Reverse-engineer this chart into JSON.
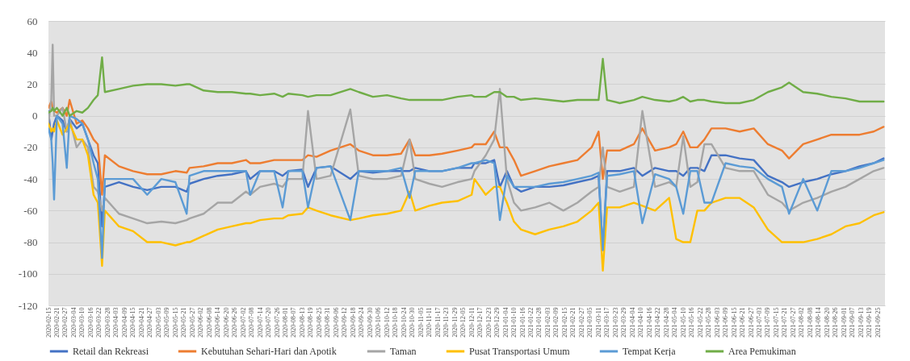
{
  "chart_data": {
    "type": "line",
    "x": [
      "2020-02-15",
      "2020-02-17",
      "2020-02-18",
      "2020-02-19",
      "2020-02-21",
      "2020-02-25",
      "2020-02-28",
      "2020-03-01",
      "2020-03-06",
      "2020-03-10",
      "2020-03-14",
      "2020-03-18",
      "2020-03-21",
      "2020-03-24",
      "2020-03-26",
      "2020-04-05",
      "2020-04-15",
      "2020-04-25",
      "2020-05-05",
      "2020-05-15",
      "2020-05-23",
      "2020-05-25",
      "2020-06-04",
      "2020-06-14",
      "2020-06-24",
      "2020-07-04",
      "2020-07-07",
      "2020-07-14",
      "2020-07-24",
      "2020-07-30",
      "2020-08-03",
      "2020-08-13",
      "2020-08-17",
      "2020-08-23",
      "2020-09-02",
      "2020-09-16",
      "2020-09-22",
      "2020-10-02",
      "2020-10-12",
      "2020-10-22",
      "2020-10-28",
      "2020-11-01",
      "2020-11-11",
      "2020-11-20",
      "2020-12-01",
      "2020-12-11",
      "2020-12-13",
      "2020-12-21",
      "2020-12-27",
      "2020-12-31",
      "2021-01-05",
      "2021-01-10",
      "2021-01-15",
      "2021-01-25",
      "2021-02-04",
      "2021-02-14",
      "2021-02-24",
      "2021-03-06",
      "2021-03-11",
      "2021-03-14",
      "2021-03-17",
      "2021-03-26",
      "2021-04-05",
      "2021-04-11",
      "2021-04-20",
      "2021-04-30",
      "2021-05-05",
      "2021-05-10",
      "2021-05-15",
      "2021-05-20",
      "2021-05-25",
      "2021-05-30",
      "2021-06-09",
      "2021-06-19",
      "2021-06-29",
      "2021-07-09",
      "2021-07-19",
      "2021-07-24",
      "2021-08-03",
      "2021-08-13",
      "2021-08-23",
      "2021-09-02",
      "2021-09-12",
      "2021-09-22",
      "2021-09-29"
    ],
    "series": [
      {
        "name": "Retail dan Rekreasi",
        "color": "#4472c4",
        "values": [
          3,
          -15,
          -10,
          -5,
          0,
          -3,
          -10,
          -2,
          -8,
          -5,
          -15,
          -25,
          -30,
          -70,
          -45,
          -42,
          -45,
          -47,
          -45,
          -45,
          -48,
          -43,
          -40,
          -38,
          -37,
          -35,
          -40,
          -35,
          -35,
          -38,
          -35,
          -34,
          -45,
          -33,
          -32,
          -40,
          -35,
          -36,
          -35,
          -35,
          -35,
          -33,
          -35,
          -35,
          -33,
          -33,
          -30,
          -30,
          -28,
          -45,
          -35,
          -45,
          -48,
          -45,
          -45,
          -44,
          -42,
          -40,
          -38,
          -85,
          -35,
          -35,
          -33,
          -38,
          -33,
          -35,
          -35,
          -38,
          -33,
          -33,
          -35,
          -25,
          -25,
          -27,
          -28,
          -38,
          -42,
          -45,
          -42,
          -40,
          -37,
          -35,
          -32,
          -30,
          -27
        ]
      },
      {
        "name": "Kebutuhan Sehari-Hari dan Apotik",
        "color": "#ed7d31",
        "values": [
          5,
          9,
          5,
          3,
          2,
          5,
          0,
          10,
          -5,
          -3,
          -8,
          -15,
          -18,
          -50,
          -25,
          -32,
          -35,
          -37,
          -37,
          -35,
          -36,
          -33,
          -32,
          -30,
          -30,
          -28,
          -30,
          -30,
          -28,
          -28,
          -28,
          -28,
          -25,
          -26,
          -22,
          -18,
          -22,
          -25,
          -25,
          -24,
          -15,
          -25,
          -25,
          -24,
          -22,
          -20,
          -18,
          -18,
          -10,
          -20,
          -20,
          -28,
          -38,
          -35,
          -32,
          -30,
          -28,
          -20,
          -10,
          -40,
          -22,
          -22,
          -18,
          -8,
          -22,
          -20,
          -18,
          -10,
          -20,
          -20,
          -15,
          -8,
          -8,
          -10,
          -8,
          -18,
          -22,
          -27,
          -18,
          -15,
          -12,
          -12,
          -12,
          -10,
          -7
        ]
      },
      {
        "name": "Taman",
        "color": "#a5a5a5",
        "values": [
          -5,
          10,
          45,
          0,
          0,
          5,
          -10,
          -2,
          -20,
          -15,
          -20,
          -45,
          -48,
          -60,
          -52,
          -62,
          -65,
          -68,
          -67,
          -68,
          -66,
          -65,
          -62,
          -55,
          -55,
          -48,
          -50,
          -45,
          -43,
          -45,
          -40,
          -40,
          3,
          -40,
          -38,
          4,
          -38,
          -40,
          -40,
          -38,
          -15,
          -40,
          -43,
          -45,
          -42,
          -40,
          -35,
          -25,
          -15,
          17,
          -40,
          -55,
          -60,
          -58,
          -55,
          -60,
          -55,
          -48,
          -45,
          -20,
          -45,
          -48,
          -45,
          3,
          -45,
          -42,
          -45,
          -13,
          -45,
          -42,
          -18,
          -18,
          -33,
          -35,
          -35,
          -50,
          -55,
          -60,
          -55,
          -52,
          -48,
          -45,
          -40,
          -35,
          -33
        ]
      },
      {
        "name": "Pusat Transportasi Umum",
        "color": "#ffc000",
        "values": [
          -5,
          -10,
          -8,
          -10,
          -3,
          -12,
          -8,
          -5,
          -15,
          -15,
          -25,
          -50,
          -55,
          -95,
          -60,
          -70,
          -73,
          -80,
          -80,
          -82,
          -80,
          -80,
          -76,
          -72,
          -70,
          -68,
          -68,
          -66,
          -65,
          -65,
          -63,
          -62,
          -58,
          -60,
          -63,
          -66,
          -65,
          -63,
          -62,
          -60,
          -48,
          -60,
          -57,
          -55,
          -54,
          -50,
          -40,
          -50,
          -45,
          -45,
          -55,
          -67,
          -72,
          -75,
          -72,
          -70,
          -67,
          -60,
          -55,
          -98,
          -58,
          -58,
          -55,
          -57,
          -60,
          -52,
          -78,
          -80,
          -80,
          -60,
          -60,
          -55,
          -52,
          -52,
          -58,
          -72,
          -80,
          -80,
          -80,
          -78,
          -75,
          -70,
          -68,
          -63,
          -61
        ]
      },
      {
        "name": "Tempat Kerja",
        "color": "#5b9bd5",
        "values": [
          -8,
          -15,
          -30,
          -53,
          0,
          -5,
          -33,
          0,
          -2,
          -5,
          -15,
          -30,
          -40,
          -90,
          -40,
          -40,
          -40,
          -50,
          -40,
          -42,
          -62,
          -38,
          -35,
          -35,
          -35,
          -35,
          -50,
          -35,
          -35,
          -58,
          -35,
          -35,
          -58,
          -33,
          -32,
          -66,
          -35,
          -35,
          -35,
          -33,
          -52,
          -35,
          -35,
          -35,
          -33,
          -30,
          -30,
          -28,
          -30,
          -66,
          -38,
          -45,
          -45,
          -45,
          -43,
          -42,
          -40,
          -38,
          -36,
          -85,
          -38,
          -37,
          -35,
          -68,
          -37,
          -40,
          -45,
          -62,
          -35,
          -35,
          -55,
          -55,
          -30,
          -32,
          -33,
          -40,
          -45,
          -62,
          -40,
          -60,
          -35,
          -35,
          -33,
          -30,
          -28
        ]
      },
      {
        "name": "Area Pemukiman",
        "color": "#70ad47",
        "values": [
          2,
          3,
          5,
          3,
          5,
          0,
          5,
          0,
          3,
          2,
          5,
          10,
          13,
          37,
          15,
          17,
          19,
          20,
          20,
          19,
          20,
          20,
          16,
          15,
          15,
          14,
          14,
          13,
          14,
          12,
          14,
          13,
          12,
          13,
          13,
          17,
          15,
          12,
          13,
          11,
          10,
          10,
          10,
          10,
          12,
          13,
          12,
          12,
          15,
          15,
          12,
          12,
          10,
          11,
          10,
          9,
          10,
          10,
          10,
          36,
          10,
          8,
          10,
          12,
          10,
          9,
          10,
          12,
          9,
          10,
          10,
          9,
          8,
          8,
          10,
          15,
          18,
          21,
          15,
          14,
          12,
          11,
          9,
          9,
          9
        ]
      }
    ],
    "xlim": [
      "2020-02-15",
      "2021-09-30"
    ],
    "xticks": [
      "2020-02-15",
      "2020-02-21",
      "2020-02-27",
      "2020-03-04",
      "2020-03-10",
      "2020-03-16",
      "2020-03-22",
      "2020-03-28",
      "2020-04-03",
      "2020-04-09",
      "2020-04-15",
      "2020-04-21",
      "2020-04-27",
      "2020-05-03",
      "2020-05-09",
      "2020-05-15",
      "2020-05-21",
      "2020-05-27",
      "2020-06-02",
      "2020-06-08",
      "2020-06-14",
      "2020-06-20",
      "2020-06-26",
      "2020-07-02",
      "2020-07-08",
      "2020-07-14",
      "2020-07-20",
      "2020-07-26",
      "2020-08-01",
      "2020-08-07",
      "2020-08-13",
      "2020-08-19",
      "2020-08-25",
      "2020-08-31",
      "2020-09-06",
      "2020-09-12",
      "2020-09-18",
      "2020-09-24",
      "2020-09-30",
      "2020-10-06",
      "2020-10-12",
      "2020-10-18",
      "2020-10-24",
      "2020-10-30",
      "2020-11-05",
      "2020-11-11",
      "2020-11-17",
      "2020-11-23",
      "2020-11-29",
      "2020-12-05",
      "2020-12-11",
      "2020-12-17",
      "2020-12-23",
      "2020-12-29",
      "2021-01-04",
      "2021-01-10",
      "2021-01-16",
      "2021-01-22",
      "2021-01-28",
      "2021-02-03",
      "2021-02-09",
      "2021-02-15",
      "2021-02-21",
      "2021-02-27",
      "2021-03-05",
      "2021-03-11",
      "2021-03-17",
      "2021-03-23",
      "2021-03-29",
      "2021-04-04",
      "2021-04-10",
      "2021-04-16",
      "2021-04-22",
      "2021-04-28",
      "2021-05-04",
      "2021-05-10",
      "2021-05-16",
      "2021-05-22",
      "2021-05-28",
      "2021-06-03",
      "2021-06-09",
      "2021-06-15",
      "2021-06-21",
      "2021-06-27",
      "2021-07-03",
      "2021-07-09",
      "2021-07-15",
      "2021-07-21",
      "2021-07-27",
      "2021-08-02",
      "2021-08-08",
      "2021-08-14",
      "2021-08-20",
      "2021-08-26",
      "2021-09-01",
      "2021-09-07",
      "2021-09-13",
      "2021-09-19",
      "2021-09-25"
    ],
    "ylim": [
      -120,
      60
    ],
    "yticks": [
      -120,
      -100,
      -80,
      -60,
      -40,
      -20,
      0,
      20,
      40,
      60
    ],
    "grid": "y",
    "legend": "bottom"
  }
}
